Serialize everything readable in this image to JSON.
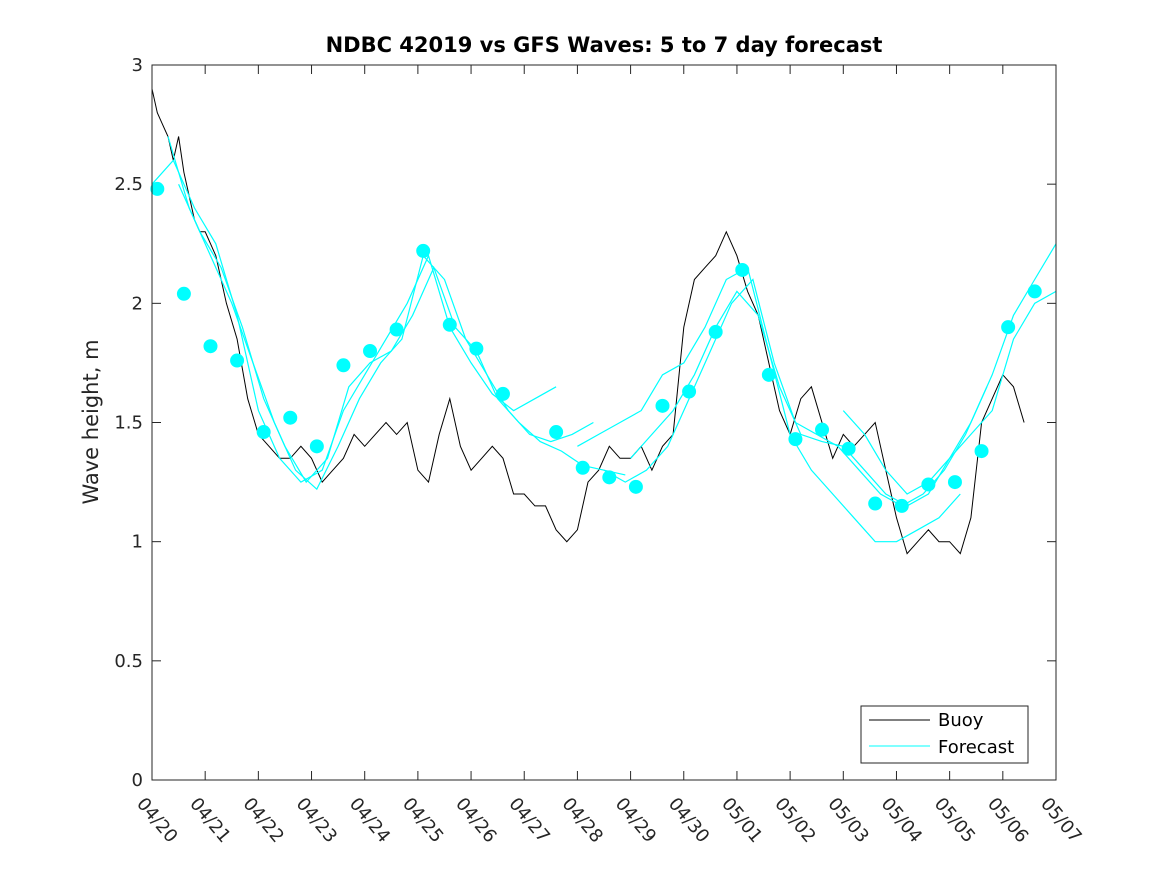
{
  "chart_data": {
    "type": "line",
    "title": "NDBC 42019 vs GFS Waves: 5 to 7 day forecast",
    "xlabel": "",
    "ylabel": "Wave height, m",
    "xlim": [
      "04/20",
      "05/07"
    ],
    "ylim": [
      0,
      3
    ],
    "x_ticks": [
      "04/20",
      "04/21",
      "04/22",
      "04/23",
      "04/24",
      "04/25",
      "04/26",
      "04/27",
      "04/28",
      "04/29",
      "04/30",
      "05/01",
      "05/02",
      "05/03",
      "05/04",
      "05/05",
      "05/06",
      "05/07"
    ],
    "y_ticks": [
      0,
      0.5,
      1,
      1.5,
      2,
      2.5,
      3
    ],
    "y_tick_labels": [
      "0",
      "0.5",
      "1",
      "1.5",
      "2",
      "2.5",
      "3"
    ],
    "grid": false,
    "legend": {
      "position": "bottom-right",
      "entries": [
        "Buoy",
        "Forecast"
      ]
    },
    "colors": {
      "buoy": "#000000",
      "forecast": "#00ffff"
    },
    "buoy": {
      "name": "Buoy",
      "x_days": [
        0.0,
        0.1,
        0.2,
        0.3,
        0.4,
        0.5,
        0.6,
        0.7,
        0.8,
        0.9,
        1.0,
        1.2,
        1.4,
        1.6,
        1.8,
        2.0,
        2.2,
        2.4,
        2.6,
        2.8,
        3.0,
        3.2,
        3.4,
        3.6,
        3.8,
        4.0,
        4.2,
        4.4,
        4.6,
        4.8,
        5.0,
        5.2,
        5.4,
        5.6,
        5.8,
        6.0,
        6.2,
        6.4,
        6.6,
        6.8,
        7.0,
        7.2,
        7.4,
        7.6,
        7.8,
        8.0,
        8.2,
        8.4,
        8.6,
        8.8,
        9.0,
        9.2,
        9.4,
        9.6,
        9.8,
        10.0,
        10.2,
        10.4,
        10.6,
        10.8,
        11.0,
        11.2,
        11.4,
        11.6,
        11.8,
        12.0,
        12.2,
        12.4,
        12.6,
        12.8,
        13.0,
        13.2,
        13.4,
        13.6,
        13.8,
        14.0,
        14.2,
        14.4,
        14.6,
        14.8,
        15.0,
        15.2,
        15.4,
        15.6,
        15.8,
        16.0,
        16.2,
        16.4
      ],
      "values": [
        2.9,
        2.8,
        2.75,
        2.7,
        2.6,
        2.7,
        2.55,
        2.45,
        2.35,
        2.3,
        2.3,
        2.2,
        2.0,
        1.85,
        1.6,
        1.45,
        1.4,
        1.35,
        1.35,
        1.4,
        1.35,
        1.25,
        1.3,
        1.35,
        1.45,
        1.4,
        1.45,
        1.5,
        1.45,
        1.5,
        1.3,
        1.25,
        1.45,
        1.6,
        1.4,
        1.3,
        1.35,
        1.4,
        1.35,
        1.2,
        1.2,
        1.15,
        1.15,
        1.05,
        1.0,
        1.05,
        1.25,
        1.3,
        1.4,
        1.35,
        1.35,
        1.4,
        1.3,
        1.4,
        1.45,
        1.9,
        2.1,
        2.15,
        2.2,
        2.3,
        2.2,
        2.05,
        1.95,
        1.75,
        1.55,
        1.45,
        1.6,
        1.65,
        1.5,
        1.35,
        1.45,
        1.4,
        1.45,
        1.5,
        1.3,
        1.1,
        0.95,
        1.0,
        1.05,
        1.0,
        1.0,
        0.95,
        1.1,
        1.5,
        1.6,
        1.7,
        1.65,
        1.5
      ]
    },
    "forecast": {
      "name": "Forecast",
      "x_days": [
        0.1,
        0.6,
        1.1,
        1.6,
        2.1,
        2.6,
        3.1,
        3.6,
        4.1,
        4.6,
        5.1,
        5.6,
        6.1,
        6.6,
        7.6,
        8.1,
        8.6,
        9.1,
        9.6,
        10.1,
        10.6,
        11.1,
        11.6,
        12.1,
        12.6,
        13.1,
        13.6,
        14.1,
        14.6,
        15.1,
        15.6,
        16.1,
        16.6
      ],
      "values": [
        2.48,
        2.04,
        1.82,
        1.76,
        1.46,
        1.52,
        1.4,
        1.74,
        1.8,
        1.89,
        2.22,
        1.91,
        1.81,
        1.62,
        1.46,
        1.31,
        1.27,
        1.23,
        1.57,
        1.63,
        1.88,
        2.14,
        1.7,
        1.43,
        1.47,
        1.39,
        1.16,
        1.15,
        1.24,
        1.25,
        1.38,
        1.9,
        2.05
      ],
      "runs": [
        {
          "x_days": [
            0.0,
            0.4,
            0.8,
            1.2,
            1.6,
            2.0,
            2.4,
            2.8,
            3.2,
            3.6,
            4.0,
            4.4,
            4.8,
            5.2,
            5.6,
            6.0,
            6.4,
            6.8,
            7.2,
            7.6
          ],
          "values": [
            2.5,
            2.6,
            2.4,
            2.25,
            1.95,
            1.55,
            1.35,
            1.25,
            1.3,
            1.55,
            1.7,
            1.85,
            2.0,
            2.2,
            1.9,
            1.75,
            1.62,
            1.55,
            1.6,
            1.65
          ]
        },
        {
          "x_days": [
            0.3,
            0.7,
            1.1,
            1.5,
            1.9,
            2.3,
            2.7,
            3.1,
            3.5,
            3.9,
            4.3,
            4.7,
            5.1,
            5.5,
            5.9,
            6.3,
            6.7,
            7.1,
            7.5,
            7.9,
            8.3
          ],
          "values": [
            2.7,
            2.4,
            2.2,
            2.0,
            1.75,
            1.5,
            1.3,
            1.22,
            1.4,
            1.6,
            1.75,
            1.85,
            2.2,
            2.1,
            1.85,
            1.7,
            1.55,
            1.45,
            1.42,
            1.45,
            1.5
          ]
        },
        {
          "x_days": [
            0.5,
            0.9,
            1.3,
            1.7,
            2.1,
            2.5,
            2.9,
            3.3,
            3.7,
            4.1,
            4.5,
            4.9,
            5.3,
            5.7,
            6.1,
            6.5,
            6.9,
            7.3,
            7.7,
            8.1,
            8.5,
            8.9
          ],
          "values": [
            2.5,
            2.3,
            2.15,
            1.9,
            1.6,
            1.4,
            1.25,
            1.35,
            1.65,
            1.75,
            1.8,
            1.95,
            2.15,
            1.9,
            1.8,
            1.6,
            1.5,
            1.42,
            1.38,
            1.32,
            1.3,
            1.28
          ]
        },
        {
          "x_days": [
            8.0,
            8.4,
            8.8,
            9.2,
            9.6,
            10.0,
            10.4,
            10.8,
            11.2,
            11.6,
            12.0,
            12.4,
            12.8,
            13.2,
            13.6,
            14.0,
            14.4,
            14.8,
            15.2
          ],
          "values": [
            1.4,
            1.45,
            1.5,
            1.55,
            1.7,
            1.75,
            1.9,
            2.1,
            2.15,
            1.8,
            1.45,
            1.3,
            1.2,
            1.1,
            1.0,
            1.0,
            1.05,
            1.1,
            1.2
          ]
        },
        {
          "x_days": [
            8.5,
            8.9,
            9.3,
            9.7,
            10.1,
            10.5,
            10.9,
            11.3,
            11.7,
            12.1,
            12.5,
            12.9,
            13.3,
            13.7,
            14.1,
            14.5,
            14.9,
            15.3,
            15.7
          ],
          "values": [
            1.3,
            1.25,
            1.3,
            1.4,
            1.6,
            1.8,
            2.0,
            2.1,
            1.75,
            1.5,
            1.45,
            1.4,
            1.3,
            1.2,
            1.15,
            1.2,
            1.3,
            1.45,
            1.65
          ]
        },
        {
          "x_days": [
            9.0,
            9.4,
            9.8,
            10.2,
            10.6,
            11.0,
            11.4,
            11.8,
            12.2,
            12.6,
            13.0,
            13.4,
            13.8,
            14.2,
            14.6,
            15.0,
            15.4,
            15.8,
            16.2,
            16.6,
            17.0
          ],
          "values": [
            1.35,
            1.45,
            1.55,
            1.7,
            1.9,
            2.05,
            1.95,
            1.65,
            1.45,
            1.42,
            1.4,
            1.3,
            1.2,
            1.15,
            1.2,
            1.35,
            1.5,
            1.7,
            1.95,
            2.1,
            2.25
          ]
        },
        {
          "x_days": [
            13.0,
            13.4,
            13.8,
            14.2,
            14.6,
            15.0,
            15.4,
            15.8,
            16.2,
            16.6,
            17.0
          ],
          "values": [
            1.55,
            1.45,
            1.3,
            1.2,
            1.25,
            1.35,
            1.45,
            1.55,
            1.85,
            2.0,
            2.05
          ]
        }
      ]
    }
  }
}
